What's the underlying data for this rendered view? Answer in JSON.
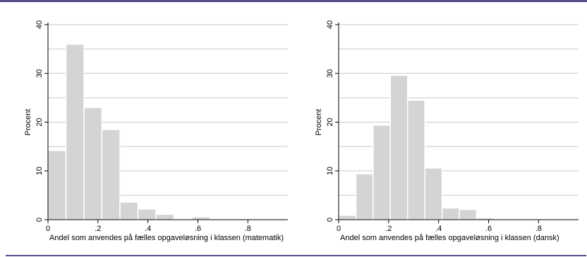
{
  "colors": {
    "rule": "#5a4e8c",
    "bar_fill": "#d4d4d4",
    "bar_stroke": "#ffffff",
    "grid": "#c8c8c8",
    "axis": "#000000"
  },
  "chart_data": [
    {
      "type": "bar",
      "subtype": "histogram",
      "xlabel": "Andel som anvendes på fælles opgaveløsning i klassen (matematik)",
      "ylabel": "Procent",
      "xlim": [
        0,
        0.96
      ],
      "ylim": [
        0,
        40
      ],
      "x_ticks": [
        0,
        0.2,
        0.4,
        0.6,
        0.8
      ],
      "x_tick_labels": [
        "0",
        ".2",
        ".4",
        ".6",
        ".8"
      ],
      "y_ticks": [
        0,
        10,
        20,
        30,
        40
      ],
      "y_tick_labels": [
        "0",
        "10",
        "20",
        "30",
        "40"
      ],
      "grid": true,
      "bin_edges": [
        0,
        0.072,
        0.144,
        0.216,
        0.288,
        0.36,
        0.432,
        0.504,
        0.576,
        0.648,
        0.72,
        0.792,
        0.864,
        0.936
      ],
      "values": [
        14.2,
        36.0,
        23.0,
        18.5,
        3.6,
        2.2,
        1.1,
        0.0,
        0.6,
        0.0,
        0.0,
        0.0,
        0.0
      ]
    },
    {
      "type": "bar",
      "subtype": "histogram",
      "xlabel": "Andel som anvendes på fælles opgaveløsning i klassen (dansk)",
      "ylabel": "Procent",
      "xlim": [
        0,
        0.96
      ],
      "ylim": [
        0,
        40
      ],
      "x_ticks": [
        0,
        0.2,
        0.4,
        0.6,
        0.8
      ],
      "x_tick_labels": [
        "0",
        ".2",
        ".4",
        ".6",
        ".8"
      ],
      "y_ticks": [
        0,
        10,
        20,
        30,
        40
      ],
      "y_tick_labels": [
        "0",
        "10",
        "20",
        "30",
        "40"
      ],
      "grid": true,
      "bin_edges": [
        0,
        0.069,
        0.138,
        0.207,
        0.276,
        0.345,
        0.414,
        0.483,
        0.552,
        0.621,
        0.69,
        0.759,
        0.828,
        0.897
      ],
      "values": [
        0.9,
        9.4,
        19.4,
        29.6,
        24.5,
        10.6,
        2.4,
        2.1,
        0.4,
        0.0,
        0.0,
        0.0,
        0.0
      ]
    }
  ]
}
